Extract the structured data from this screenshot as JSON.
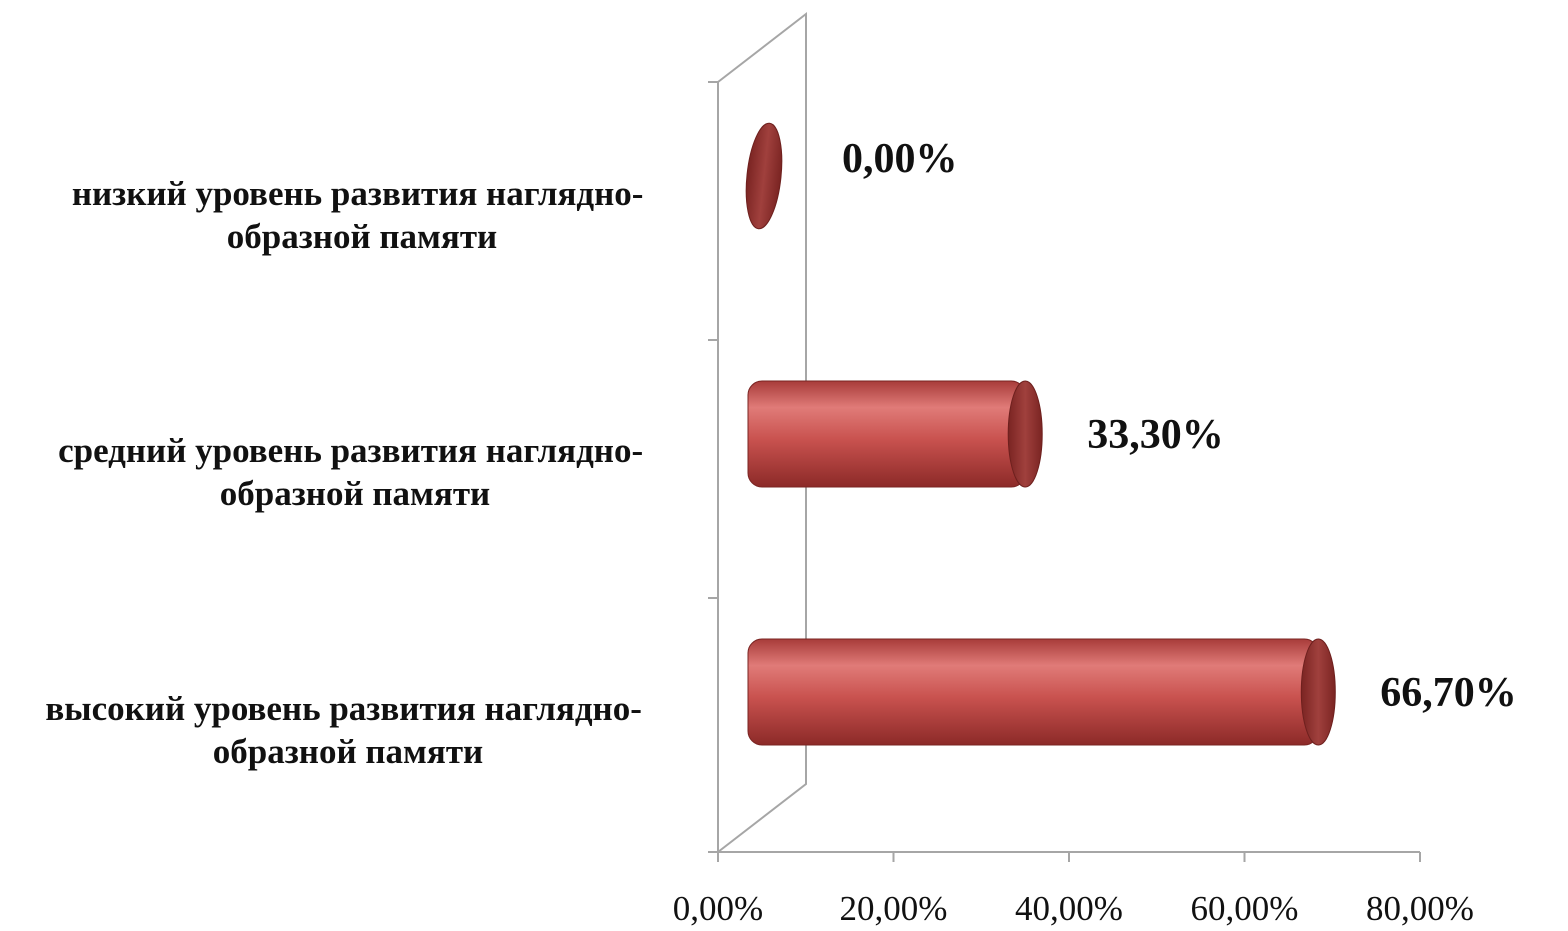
{
  "chart_data": {
    "type": "bar",
    "orientation": "horizontal",
    "style": "3d-cylinder",
    "title": "",
    "xlabel": "",
    "ylabel": "",
    "categories": [
      [
        "низкий уровень развития наглядно-",
        "образной памяти"
      ],
      [
        "средний уровень развития наглядно-",
        "образной памяти"
      ],
      [
        "высокий уровень развития наглядно-",
        "образной памяти"
      ]
    ],
    "values": [
      0.0,
      33.3,
      66.7
    ],
    "data_labels": [
      "0,00%",
      "33,30%",
      "66,70%"
    ],
    "xlim": [
      0,
      80
    ],
    "xticks": [
      0,
      20,
      40,
      60,
      80
    ],
    "xtick_labels": [
      "0,00%",
      "20,00%",
      "40,00%",
      "60,00%",
      "80,00%"
    ],
    "grid": false,
    "legend": "none",
    "colors": {
      "bar_body": "#c0504d",
      "bar_highlight": "#e07b78",
      "bar_shadow": "#8c2a28",
      "bar_cap": "#943634",
      "axis": "#a6a6a6"
    }
  }
}
